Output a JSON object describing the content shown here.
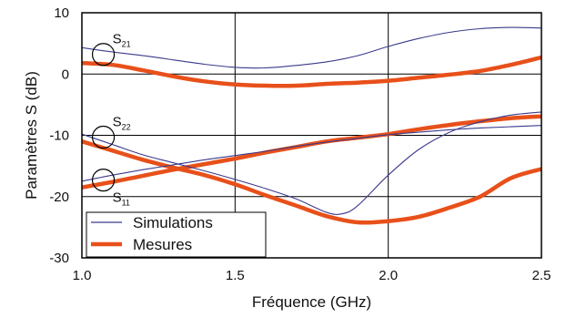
{
  "chart_data": {
    "type": "line",
    "xlabel": "Fréquence (GHz)",
    "ylabel": "Paramètres S (dB)",
    "xlim": [
      1.0,
      2.5
    ],
    "ylim": [
      -30,
      10
    ],
    "xticks": [
      "1.0",
      "1.5",
      "2.0",
      "2.5"
    ],
    "yticks": [
      "10",
      "0",
      "-10",
      "-20",
      "-30"
    ],
    "grid": true,
    "legend_position": "bottom-left",
    "legend": [
      {
        "label": "Simulations",
        "color": "#3a3a8c",
        "style": "thin"
      },
      {
        "label": "Mesures",
        "color": "#e8501a",
        "style": "thick"
      }
    ],
    "annotations": [
      {
        "main": "S",
        "sub": "21",
        "circle_at": [
          1.07,
          3.2
        ]
      },
      {
        "main": "S",
        "sub": "22",
        "circle_at": [
          1.07,
          -10.3
        ]
      },
      {
        "main": "S",
        "sub": "11",
        "circle_at": [
          1.07,
          -17.3
        ]
      }
    ],
    "series": [
      {
        "param": "S21",
        "kind": "Simulations",
        "x": [
          1.0,
          1.1,
          1.2,
          1.3,
          1.4,
          1.5,
          1.6,
          1.7,
          1.8,
          1.9,
          2.0,
          2.1,
          2.2,
          2.3,
          2.4,
          2.5
        ],
        "y": [
          4.3,
          3.6,
          3.0,
          2.3,
          1.6,
          1.1,
          1.0,
          1.4,
          2.0,
          3.0,
          4.5,
          5.8,
          6.8,
          7.4,
          7.6,
          7.5
        ]
      },
      {
        "param": "S21",
        "kind": "Mesures",
        "x": [
          1.0,
          1.1,
          1.2,
          1.3,
          1.4,
          1.5,
          1.6,
          1.7,
          1.8,
          1.9,
          2.0,
          2.1,
          2.2,
          2.3,
          2.4,
          2.5
        ],
        "y": [
          1.8,
          1.5,
          0.6,
          -0.4,
          -1.2,
          -1.7,
          -1.9,
          -1.9,
          -1.6,
          -1.4,
          -1.1,
          -0.6,
          -0.1,
          0.5,
          1.5,
          2.7
        ]
      },
      {
        "param": "S22",
        "kind": "Simulations",
        "x": [
          1.0,
          1.1,
          1.2,
          1.3,
          1.4,
          1.5,
          1.6,
          1.7,
          1.8,
          1.85,
          1.9,
          2.0,
          2.1,
          2.2,
          2.3,
          2.4,
          2.5
        ],
        "y": [
          -9.8,
          -11.5,
          -13.2,
          -14.5,
          -15.8,
          -17.2,
          -18.7,
          -20.4,
          -22.6,
          -22.8,
          -21.5,
          -16.5,
          -12.3,
          -9.5,
          -7.8,
          -6.7,
          -6.2
        ]
      },
      {
        "param": "S22",
        "kind": "Mesures",
        "x": [
          1.0,
          1.1,
          1.2,
          1.3,
          1.4,
          1.5,
          1.6,
          1.7,
          1.8,
          1.9,
          2.0,
          2.1,
          2.2,
          2.3,
          2.4,
          2.5
        ],
        "y": [
          -11.0,
          -12.5,
          -14.0,
          -15.3,
          -16.5,
          -18.0,
          -19.8,
          -21.5,
          -23.2,
          -24.2,
          -24.0,
          -23.3,
          -21.8,
          -20.0,
          -17.0,
          -15.5
        ]
      },
      {
        "param": "S11",
        "kind": "Simulations",
        "x": [
          1.0,
          1.1,
          1.2,
          1.3,
          1.4,
          1.5,
          1.6,
          1.7,
          1.8,
          1.9,
          2.0,
          2.1,
          2.2,
          2.3,
          2.4,
          2.5
        ],
        "y": [
          -17.5,
          -16.5,
          -15.6,
          -14.8,
          -14.0,
          -13.3,
          -12.6,
          -11.8,
          -11.1,
          -10.5,
          -9.9,
          -9.5,
          -9.1,
          -8.8,
          -8.6,
          -8.4
        ]
      },
      {
        "param": "S11",
        "kind": "Mesures",
        "x": [
          1.0,
          1.1,
          1.2,
          1.3,
          1.4,
          1.5,
          1.6,
          1.7,
          1.8,
          1.9,
          2.0,
          2.1,
          2.2,
          2.3,
          2.4,
          2.5
        ],
        "y": [
          -18.5,
          -17.6,
          -16.6,
          -15.6,
          -14.7,
          -13.8,
          -12.8,
          -11.9,
          -11.0,
          -10.4,
          -9.8,
          -9.0,
          -8.3,
          -7.7,
          -7.2,
          -6.9
        ]
      }
    ]
  }
}
